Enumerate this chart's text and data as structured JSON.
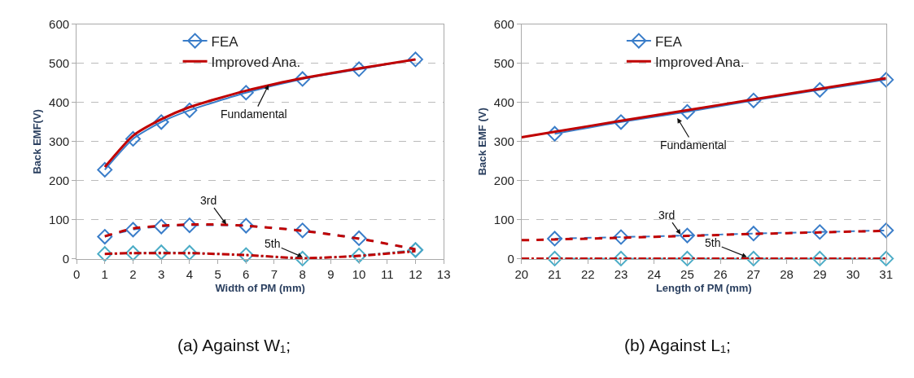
{
  "chart_data": [
    {
      "type": "line",
      "xlabel": "Width of PM (mm)",
      "ylabel": "Back EMF(V)",
      "xlim": [
        0,
        13
      ],
      "xticks": [
        0,
        1,
        2,
        3,
        4,
        5,
        6,
        7,
        8,
        9,
        10,
        11,
        12,
        13
      ],
      "ylim": [
        0,
        600
      ],
      "yticks": [
        0,
        100,
        200,
        300,
        400,
        500,
        600
      ],
      "grid": "y",
      "legend": "top",
      "series": [
        {
          "name": "FEA",
          "color": "#3a7dc9",
          "marker": "diamond",
          "line_style": "solid",
          "x": [
            1,
            2,
            3,
            4,
            6,
            8,
            10,
            12
          ],
          "values": [
            228,
            307,
            350,
            380,
            425,
            460,
            485,
            510
          ]
        },
        {
          "color": "#3a7dc9",
          "marker": "diamond",
          "line_style": "dashed",
          "x": [
            1,
            2,
            3,
            4,
            6,
            8,
            10,
            12
          ],
          "values": [
            57,
            75,
            83,
            86,
            85,
            73,
            53,
            23
          ]
        },
        {
          "color": "#4bacc6",
          "marker": "diamond",
          "line_style": "dashdot",
          "x": [
            1,
            2,
            3,
            4,
            6,
            8,
            10,
            12
          ],
          "values": [
            13,
            15,
            17,
            16,
            10,
            1,
            9,
            23
          ]
        },
        {
          "name": "Improved Ana.",
          "color": "#c00000",
          "marker": "none",
          "line_style": "solid",
          "x": [
            1,
            2,
            3,
            4,
            5,
            6,
            7,
            8,
            10,
            12
          ],
          "values": [
            235,
            315,
            357,
            388,
            410,
            430,
            447,
            462,
            487,
            510
          ]
        },
        {
          "color": "#c00000",
          "marker": "none",
          "line_style": "dashed",
          "x": [
            1,
            2,
            3,
            4,
            5,
            6,
            8,
            10,
            12
          ],
          "values": [
            58,
            78,
            85,
            88,
            88,
            85,
            72,
            52,
            25
          ]
        },
        {
          "color": "#c00000",
          "marker": "none",
          "line_style": "dashdot",
          "x": [
            1,
            2,
            3,
            4,
            6,
            8,
            10,
            12
          ],
          "values": [
            13,
            15,
            15,
            15,
            10,
            2,
            8,
            20
          ]
        }
      ],
      "annotations": [
        {
          "text": "Fundamental",
          "x": 6.8,
          "y": 445
        },
        {
          "text": "3rd",
          "x": 5.3,
          "y": 88
        },
        {
          "text": "5th",
          "x": 8,
          "y": 5
        },
        "(a) Against W₁;"
      ]
    },
    {
      "type": "line",
      "xlabel": "Length of PM (mm)",
      "ylabel": "Back EMF (V)",
      "xlim": [
        20,
        31
      ],
      "xticks": [
        20,
        21,
        22,
        23,
        24,
        25,
        26,
        27,
        28,
        29,
        30,
        31
      ],
      "ylim": [
        0,
        600
      ],
      "yticks": [
        0,
        100,
        200,
        300,
        400,
        500,
        600
      ],
      "grid": "y",
      "legend": "top",
      "series": [
        {
          "name": "FEA",
          "color": "#3a7dc9",
          "marker": "diamond",
          "line_style": "solid",
          "x": [
            21,
            23,
            25,
            27,
            29,
            31
          ],
          "values": [
            320,
            350,
            376,
            405,
            432,
            458
          ]
        },
        {
          "color": "#3a7dc9",
          "marker": "diamond",
          "line_style": "dashed",
          "x": [
            21,
            23,
            25,
            27,
            29,
            31
          ],
          "values": [
            52,
            56,
            60,
            65,
            69,
            73
          ]
        },
        {
          "color": "#4bacc6",
          "marker": "diamond",
          "line_style": "dashdot",
          "x": [
            21,
            23,
            25,
            27,
            29,
            31
          ],
          "values": [
            1,
            1,
            1,
            1,
            1,
            1
          ]
        },
        {
          "name": "Improved Ana.",
          "color": "#c00000",
          "marker": "none",
          "line_style": "solid",
          "x": [
            20,
            21,
            23,
            25,
            27,
            29,
            31
          ],
          "values": [
            311,
            325,
            353,
            380,
            408,
            435,
            462
          ]
        },
        {
          "color": "#c00000",
          "marker": "none",
          "line_style": "dashed",
          "x": [
            20,
            21,
            23,
            25,
            27,
            29,
            31
          ],
          "values": [
            48,
            50,
            54,
            59,
            64,
            68,
            72
          ]
        },
        {
          "color": "#c00000",
          "marker": "none",
          "line_style": "dashdot",
          "x": [
            20,
            21,
            23,
            25,
            27,
            29,
            31
          ],
          "values": [
            1,
            1,
            1,
            1,
            1,
            1,
            1
          ]
        }
      ],
      "annotations": [
        {
          "text": "Fundamental",
          "x": 24.7,
          "y": 360
        },
        {
          "text": "3rd",
          "x": 24.8,
          "y": 63
        },
        {
          "text": "5th",
          "x": 26.8,
          "y": 5
        },
        "(b) Against L₁;"
      ]
    }
  ]
}
